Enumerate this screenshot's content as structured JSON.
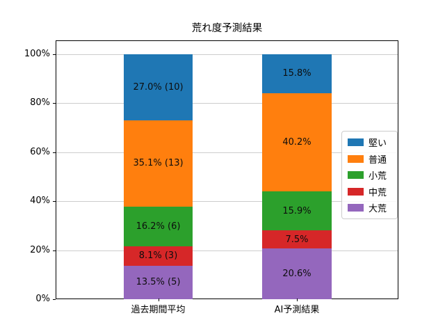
{
  "chart_data": {
    "type": "bar",
    "stacked": true,
    "title": "荒れ度予測結果",
    "categories": [
      "過去期間平均",
      "AI予測結果"
    ],
    "series": [
      {
        "name": "堅い",
        "color": "#1f77b4",
        "values": [
          27.0,
          15.8
        ],
        "bar_labels": [
          "27.0% (10)",
          "15.8%"
        ]
      },
      {
        "name": "普通",
        "color": "#ff7f0e",
        "values": [
          35.1,
          40.2
        ],
        "bar_labels": [
          "35.1% (13)",
          "40.2%"
        ]
      },
      {
        "name": "小荒",
        "color": "#2ca02c",
        "values": [
          16.2,
          15.9
        ],
        "bar_labels": [
          "16.2% (6)",
          "15.9%"
        ]
      },
      {
        "name": "中荒",
        "color": "#d62728",
        "values": [
          8.1,
          7.5
        ],
        "bar_labels": [
          "8.1% (3)",
          "7.5%"
        ]
      },
      {
        "name": "大荒",
        "color": "#9467bd",
        "values": [
          13.5,
          20.6
        ],
        "bar_labels": [
          "13.5% (5)",
          "20.6%"
        ]
      }
    ],
    "stack_order": "first-series-on-top",
    "ylim": [
      0,
      100
    ],
    "y_ticks": [
      {
        "value": 0,
        "label": "0%"
      },
      {
        "value": 20,
        "label": "20%"
      },
      {
        "value": 40,
        "label": "40%"
      },
      {
        "value": 60,
        "label": "60%"
      },
      {
        "value": 80,
        "label": "80%"
      },
      {
        "value": 100,
        "label": "100%"
      }
    ],
    "grid": true,
    "legend_position": "center right"
  }
}
